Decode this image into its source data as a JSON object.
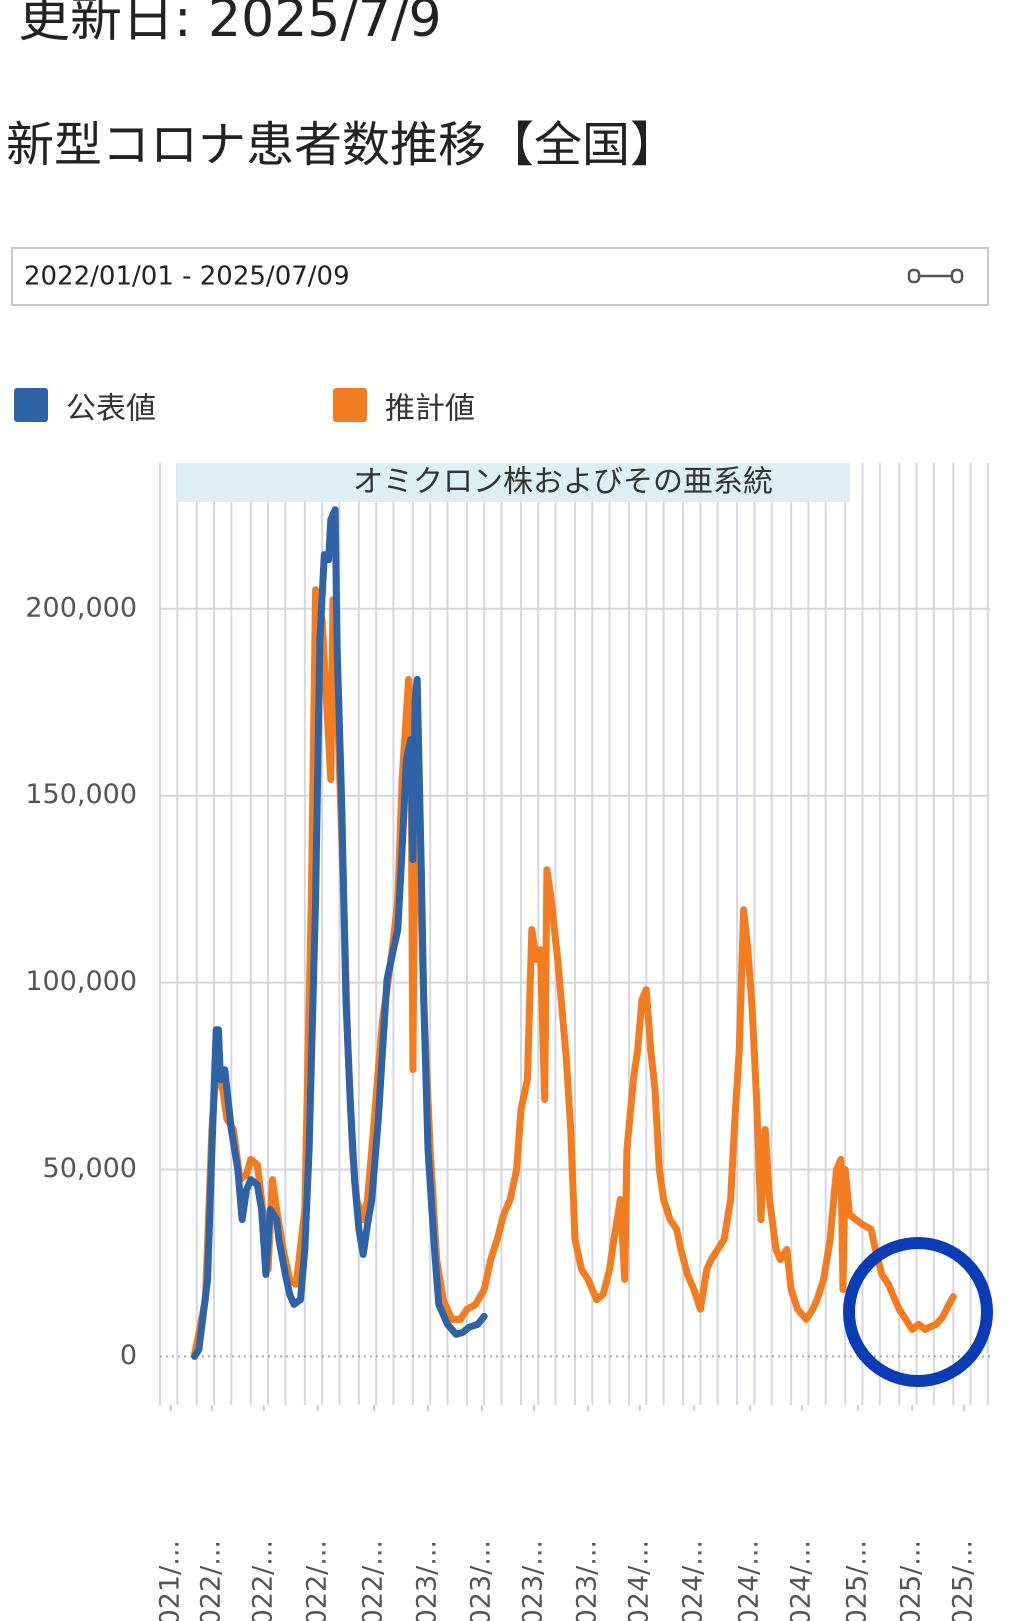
{
  "header": {
    "updated": "更新日: 2025/7/9",
    "title": "新型コロナ患者数推移【全国】",
    "date_range": "2022/01/01 - 2025/07/09"
  },
  "chart_data": {
    "type": "line",
    "annotation": "オミクロン株およびその亜系統",
    "xlim": [
      2021.84,
      2025.68
    ],
    "xticks": [
      {
        "value": 2021.89,
        "label": "2021/..."
      },
      {
        "value": 2022.08,
        "label": "2022/..."
      },
      {
        "value": 2022.32,
        "label": "2022/..."
      },
      {
        "value": 2022.57,
        "label": "2022/..."
      },
      {
        "value": 2022.83,
        "label": "2022/..."
      },
      {
        "value": 2023.08,
        "label": "2023/..."
      },
      {
        "value": 2023.33,
        "label": "2023/..."
      },
      {
        "value": 2023.57,
        "label": "2023/..."
      },
      {
        "value": 2023.82,
        "label": "2023/..."
      },
      {
        "value": 2024.06,
        "label": "2024/..."
      },
      {
        "value": 2024.31,
        "label": "2024/..."
      },
      {
        "value": 2024.57,
        "label": "2024/..."
      },
      {
        "value": 2024.81,
        "label": "2024/..."
      },
      {
        "value": 2025.07,
        "label": "2025/..."
      },
      {
        "value": 2025.32,
        "label": "2025/..."
      },
      {
        "value": 2025.56,
        "label": "2025/..."
      }
    ],
    "x_minor_ticks": [
      2021.84,
      2021.92,
      2022.01,
      2022.09,
      2022.17,
      2022.26,
      2022.34,
      2022.42,
      2022.51,
      2022.59,
      2022.67,
      2022.76,
      2022.84,
      2022.92,
      2023.01,
      2023.09,
      2023.17,
      2023.26,
      2023.34,
      2023.42,
      2023.51,
      2023.59,
      2023.67,
      2023.76,
      2023.84,
      2023.92,
      2024.01,
      2024.09,
      2024.17,
      2024.26,
      2024.34,
      2024.42,
      2024.51,
      2024.59,
      2024.67,
      2024.76,
      2024.84,
      2024.92,
      2025.01,
      2025.09,
      2025.17,
      2025.26,
      2025.34,
      2025.42,
      2025.51,
      2025.59,
      2025.67
    ],
    "ylim": [
      -13000,
      239000
    ],
    "yticks": [
      0,
      {
        "value": 50000,
        "label": "50,000"
      },
      {
        "value": 100000,
        "label": "100,000"
      },
      {
        "value": 150000,
        "label": "150,000"
      },
      {
        "value": 200000,
        "label": "200,000"
      }
    ],
    "grid": true,
    "legend": "top-left",
    "series": [
      {
        "name": "推計値",
        "color": "#f47c20",
        "x": [
          2022.0,
          2022.05,
          2022.08,
          2022.1,
          2022.13,
          2022.15,
          2022.18,
          2022.21,
          2022.24,
          2022.26,
          2022.29,
          2022.31,
          2022.34,
          2022.36,
          2022.38,
          2022.41,
          2022.44,
          2022.47,
          2022.51,
          2022.54,
          2022.56,
          2022.59,
          2022.61,
          2022.63,
          2022.64,
          2022.66,
          2022.69,
          2022.71,
          2022.73,
          2022.75,
          2022.78,
          2022.8,
          2022.82,
          2022.85,
          2022.87,
          2022.89,
          2022.92,
          2022.94,
          2022.96,
          2022.99,
          2023.0,
          2023.01,
          2023.02,
          2023.04,
          2023.06,
          2023.09,
          2023.12,
          2023.15,
          2023.19,
          2023.23,
          2023.26,
          2023.3,
          2023.34,
          2023.37,
          2023.4,
          2023.43,
          2023.46,
          2023.49,
          2023.51,
          2023.54,
          2023.56,
          2023.58,
          2023.6,
          2023.62,
          2023.63,
          2023.65,
          2023.68,
          2023.7,
          2023.72,
          2023.74,
          2023.76,
          2023.79,
          2023.82,
          2023.86,
          2023.89,
          2023.92,
          2023.94,
          2023.97,
          2023.99,
          2024.0,
          2024.03,
          2024.05,
          2024.07,
          2024.09,
          2024.11,
          2024.13,
          2024.15,
          2024.17,
          2024.2,
          2024.23,
          2024.25,
          2024.28,
          2024.31,
          2024.34,
          2024.37,
          2024.39,
          2024.42,
          2024.45,
          2024.48,
          2024.5,
          2024.52,
          2024.54,
          2024.56,
          2024.58,
          2024.6,
          2024.62,
          2024.64,
          2024.66,
          2024.69,
          2024.71,
          2024.74,
          2024.76,
          2024.79,
          2024.83,
          2024.86,
          2024.88,
          2024.91,
          2024.94,
          2024.97,
          2024.99,
          2025.0,
          2025.01,
          2025.03,
          2025.06,
          2025.09,
          2025.13,
          2025.15,
          2025.18,
          2025.21,
          2025.24,
          2025.26,
          2025.29,
          2025.32,
          2025.35,
          2025.38,
          2025.4,
          2025.43,
          2025.46,
          2025.49,
          2025.51
        ],
        "values": [
          500,
          15200,
          60700,
          76700,
          71400,
          63400,
          60700,
          47300,
          48700,
          52700,
          51300,
          42000,
          23300,
          47300,
          39300,
          28600,
          20600,
          19300,
          39300,
          122200,
          205100,
          197100,
          175700,
          154300,
          202400,
          175700,
          122200,
          82100,
          55300,
          42000,
          36600,
          42000,
          55300,
          76700,
          90100,
          98100,
          111500,
          122200,
          154300,
          181100,
          175700,
          76700,
          148900,
          135500,
          95500,
          55300,
          25900,
          15200,
          9900,
          9900,
          12600,
          13900,
          17900,
          25900,
          31300,
          38000,
          42000,
          50000,
          66000,
          74100,
          114200,
          106200,
          108800,
          68700,
          130200,
          122200,
          106200,
          92800,
          79400,
          60700,
          31300,
          23300,
          20600,
          15200,
          16600,
          23300,
          31300,
          42000,
          20600,
          55300,
          74100,
          82100,
          95500,
          98100,
          82100,
          71400,
          50000,
          42000,
          36600,
          34000,
          28600,
          21900,
          17900,
          12600,
          23300,
          25900,
          28600,
          31300,
          42000,
          63400,
          82100,
          119500,
          108800,
          92800,
          68700,
          36600,
          60700,
          42000,
          28600,
          25900,
          28600,
          17900,
          12600,
          9900,
          12600,
          15200,
          20600,
          31300,
          50000,
          52700,
          17900,
          50000,
          38000,
          36600,
          35300,
          34000,
          28600,
          21900,
          19300,
          15200,
          12600,
          9900,
          7200,
          8600,
          7200,
          7800,
          8600,
          10400,
          13900,
          16000
        ]
      },
      {
        "name": "公表値",
        "color": "#2e63a8",
        "x": [
          2022.0,
          2022.02,
          2022.06,
          2022.08,
          2022.1,
          2022.11,
          2022.12,
          2022.14,
          2022.17,
          2022.2,
          2022.22,
          2022.24,
          2022.26,
          2022.29,
          2022.31,
          2022.33,
          2022.35,
          2022.38,
          2022.39,
          2022.42,
          2022.44,
          2022.46,
          2022.49,
          2022.51,
          2022.53,
          2022.56,
          2022.58,
          2022.6,
          2022.62,
          2022.63,
          2022.65,
          2022.66,
          2022.68,
          2022.7,
          2022.72,
          2022.74,
          2022.76,
          2022.78,
          2022.8,
          2022.82,
          2022.85,
          2022.87,
          2022.89,
          2022.92,
          2022.94,
          2022.96,
          2022.98,
          2023.0,
          2023.01,
          2023.02,
          2023.03,
          2023.05,
          2023.06,
          2023.08,
          2023.11,
          2023.13,
          2023.17,
          2023.21,
          2023.24,
          2023.27,
          2023.31,
          2023.34
        ],
        "values": [
          0,
          1900,
          20600,
          55300,
          87400,
          87400,
          74000,
          76700,
          60700,
          50000,
          36600,
          44600,
          47300,
          45900,
          39300,
          21900,
          39300,
          36600,
          31300,
          21900,
          16600,
          13900,
          15200,
          28600,
          55300,
          122200,
          191700,
          214500,
          213100,
          223800,
          226500,
          189000,
          148900,
          95500,
          68700,
          47300,
          34000,
          27300,
          35300,
          42000,
          63400,
          82100,
          100800,
          108800,
          114200,
          135500,
          159600,
          165000,
          132900,
          175700,
          181100,
          127500,
          95500,
          55300,
          28600,
          13900,
          8600,
          5900,
          6400,
          7800,
          8600,
          10700
        ]
      }
    ]
  }
}
